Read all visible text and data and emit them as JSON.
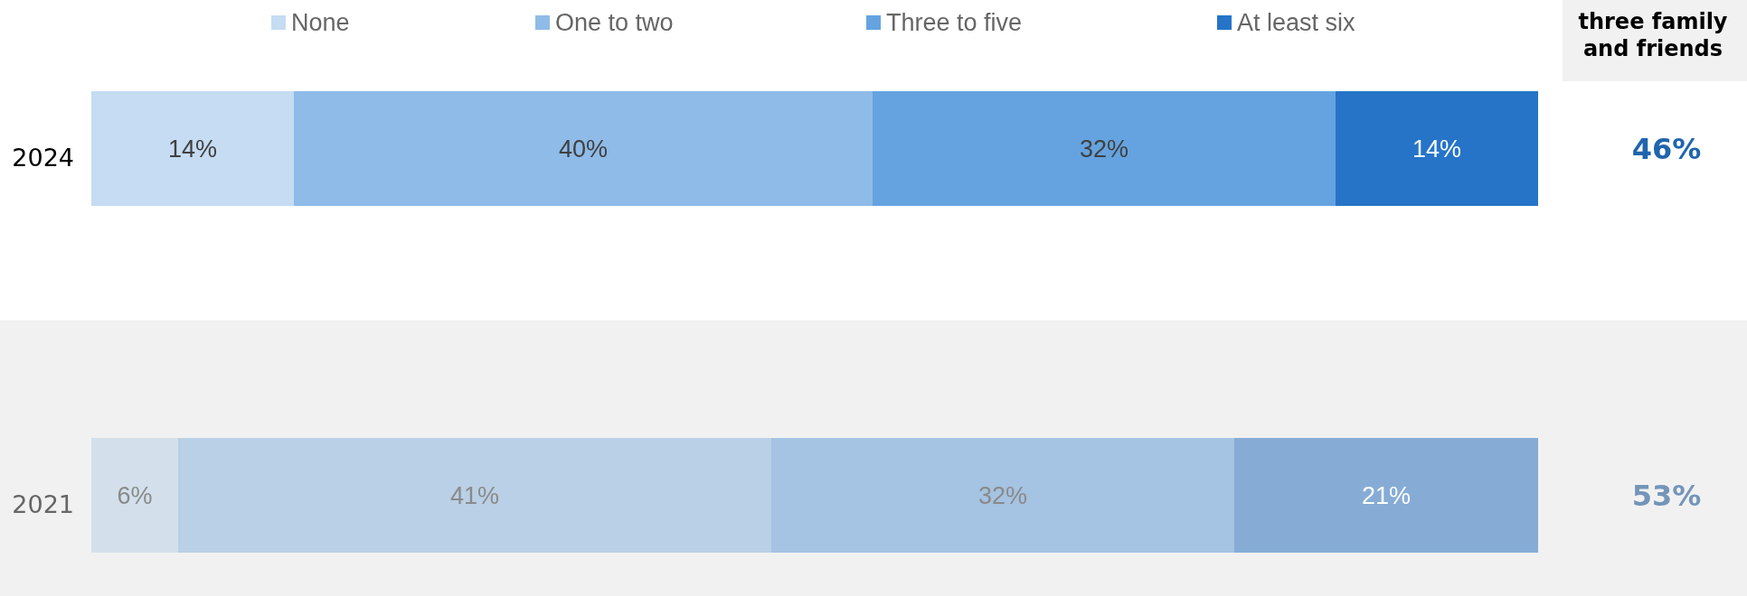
{
  "chart_data": {
    "type": "bar",
    "orientation": "horizontal",
    "stacked": true,
    "categories": [
      "2024",
      "2021"
    ],
    "xlim": [
      0,
      100
    ],
    "tick_labels": "y",
    "legend": "top",
    "data_labels": true,
    "series": [
      {
        "name": "None",
        "color": "#c5dcf2",
        "colors": [
          "#c5dcf2",
          "#d3e0ec"
        ],
        "values": [
          14,
          6
        ],
        "value_labels": [
          "14%",
          "6%"
        ]
      },
      {
        "name": "One to two",
        "color": "#8fbbe8",
        "colors": [
          "#8fbbe8",
          "#bad0e6"
        ],
        "values": [
          40,
          41
        ],
        "value_labels": [
          "40%",
          "41%"
        ]
      },
      {
        "name": "Three to five",
        "color": "#65a3e0",
        "colors": [
          "#65a3e0",
          "#a5c3e2"
        ],
        "values": [
          32,
          32
        ],
        "value_labels": [
          "32%",
          "32%"
        ]
      },
      {
        "name": "At least six",
        "color": "#2574c8",
        "colors": [
          "#2574c8",
          "#86acd6"
        ],
        "values": [
          14,
          21
        ],
        "value_labels": [
          "14%",
          "21%"
        ]
      }
    ],
    "bands": [
      {
        "axis": "y",
        "from": "2021",
        "to": "2021",
        "color": "#f1f1f1"
      }
    ],
    "annotations": [
      "three family and friends",
      "46%",
      "53%"
    ]
  }
}
